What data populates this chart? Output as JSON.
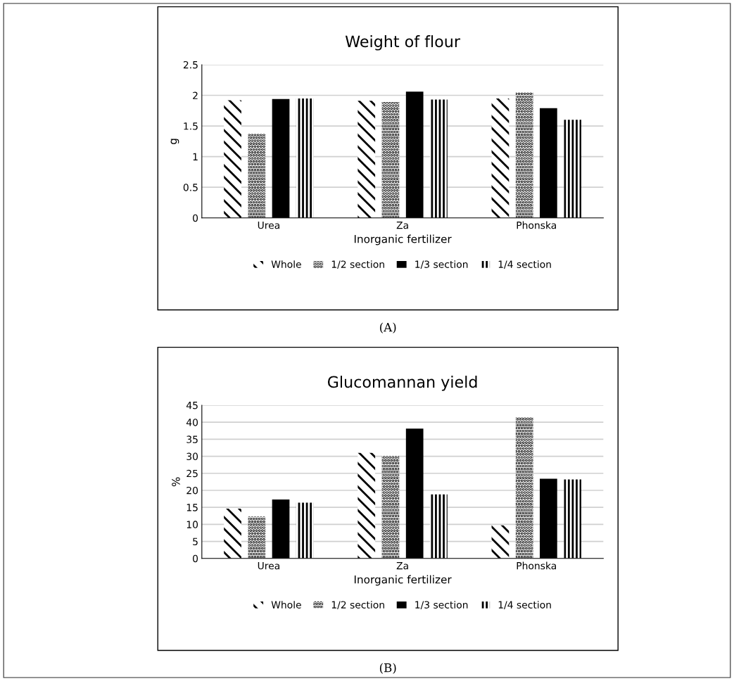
{
  "chart_data": [
    {
      "type": "bar",
      "title": "Weight of flour",
      "xlabel": "Inorganic fertilizer",
      "ylabel": "g",
      "categories": [
        "Urea",
        "Za",
        "Phonska"
      ],
      "series": [
        {
          "name": "Whole",
          "color": "#000000",
          "values": [
            1.92,
            1.91,
            1.95
          ]
        },
        {
          "name": "1/2 section",
          "color": "#000000",
          "values": [
            1.37,
            1.89,
            2.05
          ]
        },
        {
          "name": "1/3 section",
          "color": "#000000",
          "values": [
            1.94,
            2.06,
            1.79
          ]
        },
        {
          "name": "1/4 section",
          "color": "#000000",
          "values": [
            1.95,
            1.93,
            1.6
          ]
        }
      ],
      "ylim": [
        0,
        2.5
      ],
      "yticks": [
        0,
        0.5,
        1,
        1.5,
        2,
        2.5
      ],
      "grid": "y",
      "legend": "bottom",
      "annotations": [
        "(A)"
      ]
    },
    {
      "type": "bar",
      "title": "Glucomannan yield",
      "xlabel": "Inorganic fertilizer",
      "ylabel": "%",
      "categories": [
        "Urea",
        "Za",
        "Phonska"
      ],
      "series": [
        {
          "name": "Whole",
          "color": "#000000",
          "values": [
            14.6,
            31.0,
            9.7
          ]
        },
        {
          "name": "1/2 section",
          "color": "#000000",
          "values": [
            12.3,
            30.1,
            41.5
          ]
        },
        {
          "name": "1/3 section",
          "color": "#000000",
          "values": [
            17.3,
            38.1,
            23.4
          ]
        },
        {
          "name": "1/4 section",
          "color": "#000000",
          "values": [
            16.4,
            18.8,
            23.2
          ]
        }
      ],
      "ylim": [
        0,
        45
      ],
      "yticks": [
        0,
        5,
        10,
        15,
        20,
        25,
        30,
        35,
        40,
        45
      ],
      "grid": "y",
      "legend": "bottom",
      "annotations": [
        "(B)"
      ]
    }
  ]
}
